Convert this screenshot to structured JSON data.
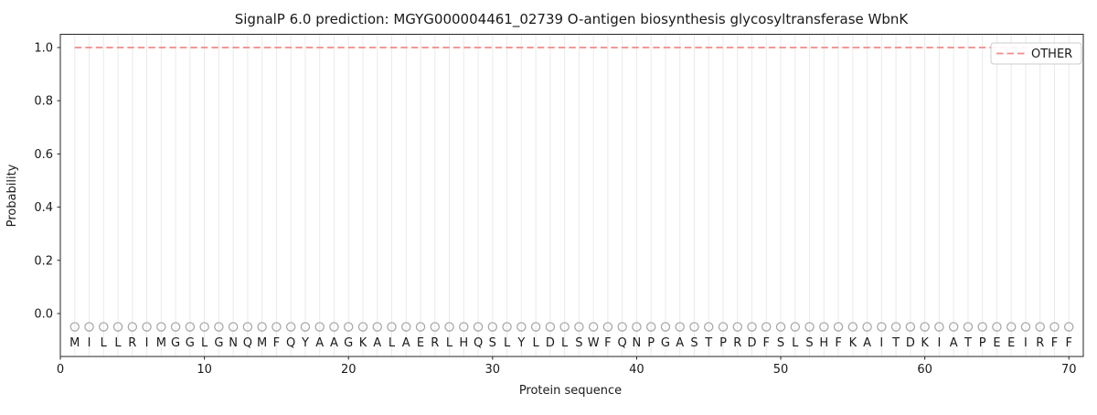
{
  "chart_data": {
    "type": "line",
    "title": "SignalP 6.0 prediction: MGYG000004461_02739 O-antigen biosynthesis glycosyltransferase WbnK",
    "xlabel": "Protein sequence",
    "ylabel": "Probability",
    "xlim": [
      0,
      71
    ],
    "ylim": [
      -0.16,
      1.05
    ],
    "x_ticks": [
      0,
      10,
      20,
      30,
      40,
      50,
      60,
      70
    ],
    "y_ticks": [
      0.0,
      0.2,
      0.4,
      0.6,
      0.8,
      1.0
    ],
    "grid": {
      "vertical_per_residue": true,
      "horizontal": false,
      "color": "#eaeaea"
    },
    "sequence": "MILLRIMGGLGNQMFQYAAGKALAERLHQSLYLDLSWFQNPGASTPRDFSLSHFKAITDKIATPEEIRFF",
    "series": [
      {
        "name": "OTHER",
        "color": "#f28a8a",
        "linestyle": "dashed",
        "x_start": 1,
        "values": [
          1.0,
          1.0,
          1.0,
          1.0,
          1.0,
          1.0,
          1.0,
          1.0,
          1.0,
          1.0,
          1.0,
          1.0,
          1.0,
          1.0,
          1.0,
          1.0,
          1.0,
          1.0,
          1.0,
          1.0,
          1.0,
          1.0,
          1.0,
          1.0,
          1.0,
          1.0,
          1.0,
          1.0,
          1.0,
          1.0,
          1.0,
          1.0,
          1.0,
          1.0,
          1.0,
          1.0,
          1.0,
          1.0,
          1.0,
          1.0,
          1.0,
          1.0,
          1.0,
          1.0,
          1.0,
          1.0,
          1.0,
          1.0,
          1.0,
          1.0,
          1.0,
          1.0,
          1.0,
          1.0,
          1.0,
          1.0,
          1.0,
          1.0,
          1.0,
          1.0,
          1.0,
          1.0,
          1.0,
          1.0,
          1.0,
          1.0,
          1.0,
          1.0,
          1.0,
          1.0
        ]
      }
    ],
    "residue_markers": {
      "marker": "open-circle",
      "y_value": -0.05,
      "color": "#a3a3a3"
    },
    "legend": {
      "position": "upper-right",
      "entries": [
        {
          "label": "OTHER",
          "color": "#f28a8a",
          "linestyle": "dashed"
        }
      ]
    }
  }
}
